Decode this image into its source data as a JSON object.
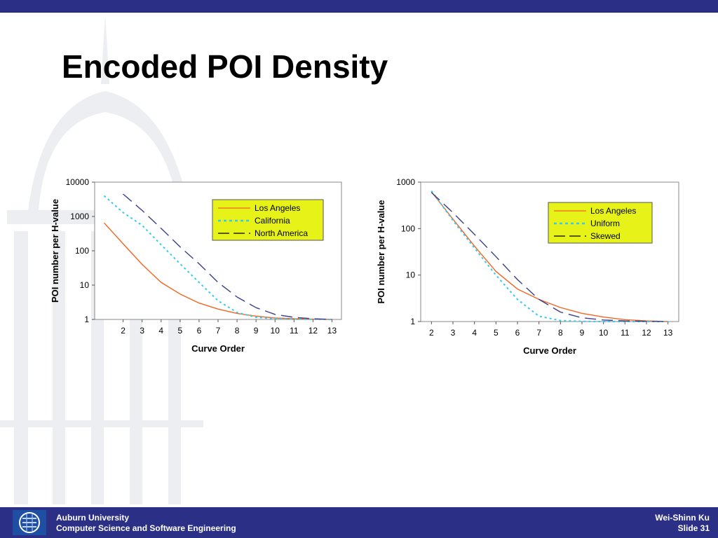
{
  "slide": {
    "title": "Encoded POI Density",
    "footer_left_line1": "Auburn University",
    "footer_left_line2": "Computer Science and Software Engineering",
    "footer_right_line1": "Wei-Shinn Ku",
    "footer_right_line2": "Slide 31",
    "logo_icon": "csse-logo-icon"
  },
  "colors": {
    "bar": "#2b2f86",
    "legend_bg": "#e6f218",
    "orange": "#f26522",
    "cyan": "#33ccee",
    "navy_dash": "#3a3f8a",
    "watermark": "#eceef2"
  },
  "chart_data": [
    {
      "type": "line",
      "title": "",
      "xlabel": "Curve Order",
      "ylabel": "POI number per H-value",
      "yscale": "log",
      "ylim": [
        1,
        10000
      ],
      "xlim": [
        0.5,
        13.5
      ],
      "x_ticks": [
        2,
        3,
        4,
        5,
        6,
        7,
        8,
        9,
        10,
        11,
        12,
        13
      ],
      "y_ticks": [
        1,
        10,
        100,
        1000,
        10000
      ],
      "y_tick_labels": [
        "1",
        "10",
        "100",
        "1000",
        "10000"
      ],
      "legend_position": "top-right",
      "grid": false,
      "series": [
        {
          "name": "Los Angeles",
          "style": "solid",
          "color": "#f26522",
          "x": [
            1,
            2,
            3,
            4,
            5,
            6,
            7,
            8,
            9,
            10,
            11,
            12,
            13
          ],
          "values": [
            650,
            160,
            40,
            12,
            5.5,
            3,
            2,
            1.5,
            1.25,
            1.1,
            1.05,
            1.02,
            1
          ]
        },
        {
          "name": "California",
          "style": "dotted",
          "color": "#33ccee",
          "x": [
            1,
            2,
            3,
            4,
            5,
            6,
            7,
            8,
            9,
            10,
            11,
            12,
            13
          ],
          "values": [
            4000,
            1300,
            550,
            150,
            42,
            12,
            3.5,
            1.6,
            1.15,
            1.05,
            1.02,
            1.01,
            1
          ]
        },
        {
          "name": "North America",
          "style": "dashed",
          "color": "#3a3f8a",
          "x": [
            2,
            3,
            4,
            5,
            6,
            7,
            8,
            9,
            10,
            11,
            12,
            13
          ],
          "values": [
            4500,
            1500,
            450,
            130,
            42,
            12,
            4.5,
            2.2,
            1.4,
            1.15,
            1.05,
            1
          ]
        }
      ]
    },
    {
      "type": "line",
      "title": "",
      "xlabel": "Curve Order",
      "ylabel": "POI number per H-value",
      "yscale": "log",
      "ylim": [
        1,
        1000
      ],
      "xlim": [
        1.5,
        13.5
      ],
      "x_ticks": [
        2,
        3,
        4,
        5,
        6,
        7,
        8,
        9,
        10,
        11,
        12,
        13
      ],
      "y_ticks": [
        1,
        10,
        100,
        1000
      ],
      "y_tick_labels": [
        "1",
        "10",
        "100",
        "1000"
      ],
      "legend_position": "top-right",
      "grid": false,
      "series": [
        {
          "name": "Los Angeles",
          "style": "solid",
          "color": "#f26522",
          "x": [
            2,
            3,
            4,
            5,
            6,
            7,
            8,
            9,
            10,
            11,
            12,
            13
          ],
          "values": [
            620,
            160,
            42,
            12,
            5,
            3,
            2,
            1.5,
            1.25,
            1.1,
            1.03,
            1
          ]
        },
        {
          "name": "Uniform",
          "style": "dotted",
          "color": "#33ccee",
          "x": [
            2,
            3,
            4,
            5,
            6,
            7,
            8,
            9,
            10,
            11,
            12,
            13
          ],
          "values": [
            650,
            150,
            38,
            10,
            3,
            1.3,
            1.05,
            1.01,
            1,
            1,
            1,
            1
          ]
        },
        {
          "name": "Skewed",
          "style": "dashed",
          "color": "#3a3f8a",
          "x": [
            2,
            3,
            4,
            5,
            6,
            7,
            8,
            9,
            10,
            11,
            12,
            13
          ],
          "values": [
            600,
            220,
            75,
            25,
            8,
            3,
            1.6,
            1.2,
            1.08,
            1.03,
            1.01,
            1
          ]
        }
      ]
    }
  ]
}
